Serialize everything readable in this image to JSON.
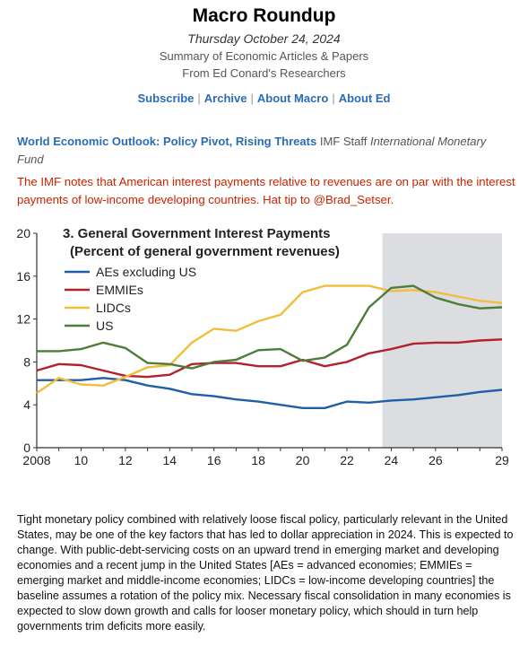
{
  "header": {
    "title": "Macro Roundup",
    "date": "Thursday October 24, 2024",
    "subtitle_1": "Summary of Economic Articles & Papers",
    "subtitle_2": "From Ed Conard's Researchers"
  },
  "nav": {
    "items": [
      "Subscribe",
      "Archive",
      "About Macro",
      "About Ed"
    ],
    "separator": "|"
  },
  "article": {
    "title": "World Economic Outlook: Policy Pivot, Rising Threats",
    "author": "IMF Staff",
    "publication": "International Monetary Fund"
  },
  "note": "The IMF notes that American interest payments relative to revenues are on par with the interest payments of low-income developing countries. Hat tip to @Brad_Setser.",
  "chart_data": {
    "type": "line",
    "title": "3. General Government Interest Payments",
    "subtitle": "(Percent of general government revenues)",
    "x": [
      2008,
      2009,
      2010,
      2011,
      2012,
      2013,
      2014,
      2015,
      2016,
      2017,
      2018,
      2019,
      2020,
      2021,
      2022,
      2023,
      2024,
      2025,
      2026,
      2027,
      2028,
      2029
    ],
    "xticks": [
      "2008",
      "10",
      "12",
      "14",
      "16",
      "18",
      "20",
      "22",
      "24",
      "26",
      "29"
    ],
    "xtick_values": [
      2008,
      2010,
      2012,
      2014,
      2016,
      2018,
      2020,
      2022,
      2024,
      2026,
      2029
    ],
    "yticks": [
      "0",
      "4",
      "8",
      "12",
      "16",
      "20"
    ],
    "ylim": [
      0,
      20
    ],
    "xlim": [
      2008,
      2029
    ],
    "projection_shading": [
      2023.6,
      2029
    ],
    "legend_position": "top-left",
    "grid": false,
    "series": [
      {
        "name": "AEs excluding US",
        "color": "#1f5fa8",
        "values": [
          6.3,
          6.3,
          6.3,
          6.5,
          6.3,
          5.8,
          5.5,
          5.0,
          4.8,
          4.5,
          4.3,
          4.0,
          3.7,
          3.7,
          4.3,
          4.2,
          4.4,
          4.5,
          4.7,
          4.9,
          5.2,
          5.4
        ]
      },
      {
        "name": "EMMIEs",
        "color": "#b3202e",
        "values": [
          7.2,
          7.8,
          7.7,
          7.2,
          6.7,
          6.6,
          6.8,
          7.8,
          7.9,
          7.9,
          7.6,
          7.6,
          8.2,
          7.6,
          8.0,
          8.8,
          9.2,
          9.7,
          9.8,
          9.8,
          10.0,
          10.1
        ]
      },
      {
        "name": "LIDCs",
        "color": "#f2bd3d",
        "values": [
          5.1,
          6.5,
          5.9,
          5.8,
          6.6,
          7.5,
          7.7,
          9.8,
          11.1,
          10.9,
          11.8,
          12.4,
          14.5,
          15.1,
          15.1,
          15.1,
          14.6,
          14.7,
          14.5,
          14.1,
          13.7,
          13.5
        ]
      },
      {
        "name": "US",
        "color": "#4e7c3a",
        "values": [
          9.0,
          9.0,
          9.2,
          9.8,
          9.3,
          7.9,
          7.8,
          7.4,
          8.0,
          8.2,
          9.1,
          9.2,
          8.1,
          8.4,
          9.6,
          13.1,
          14.9,
          15.1,
          14.0,
          13.4,
          13.0,
          13.1
        ]
      }
    ]
  },
  "body": "Tight monetary policy combined with relatively loose fiscal policy, particularly relevant in the United States, may be one of the key factors that has led to dollar appreciation in 2024. This is expected to change. With public-debt-servicing costs on an upward trend in emerging market and developing economies and a recent jump in the United States [AEs = advanced economies; EMMIEs = emerging market and middle-income economies; LIDCs = low-income developing countries] the baseline assumes a rotation of the policy mix. Necessary fiscal consolidation in many economies is expected to slow down growth and calls for looser monetary policy, which should in turn help governments trim deficits more easily."
}
